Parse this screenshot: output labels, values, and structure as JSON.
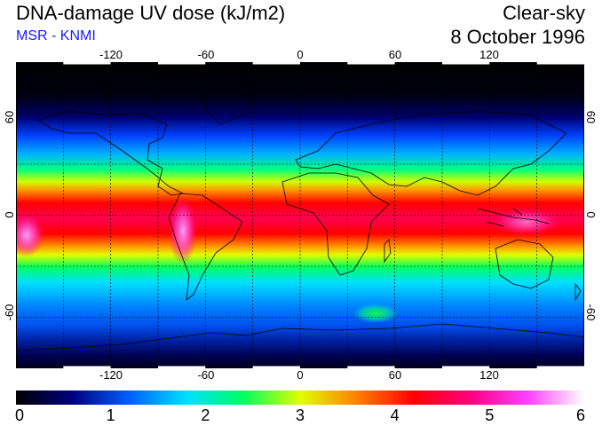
{
  "header": {
    "title": "DNA-damage UV dose (kJ/m2)",
    "subtitle": "MSR - KNMI",
    "condition": "Clear-sky",
    "date": "8 October 1996"
  },
  "colors": {
    "subtitle": "#1a1aff",
    "scale": [
      "#000000",
      "#000080",
      "#0060ff",
      "#00e0ff",
      "#00ff60",
      "#e0ff00",
      "#ff8000",
      "#ff0000",
      "#ff0080",
      "#ff40ff",
      "#ffffff"
    ]
  },
  "map": {
    "projection": "equirectangular",
    "lon_range": [
      -180,
      180
    ],
    "lat_range": [
      -90,
      90
    ],
    "lon_ticks": [
      "-120",
      "-60",
      "0",
      "60",
      "120"
    ],
    "lat_ticks": [
      "60",
      "0",
      "-60"
    ],
    "grid": "dashed every 30 degrees"
  },
  "colorbar": {
    "min": 0,
    "max": 6,
    "labels": [
      "0",
      "1",
      "2",
      "3",
      "4",
      "5",
      "6"
    ]
  }
}
